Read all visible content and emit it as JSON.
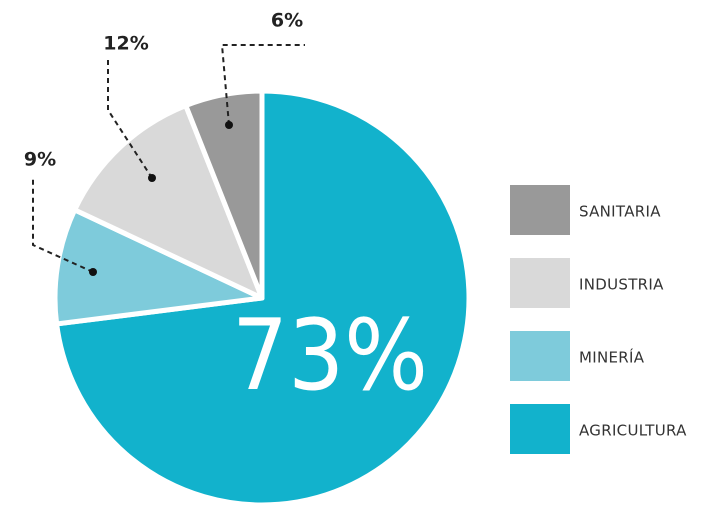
{
  "chart_data": {
    "type": "pie",
    "categories": [
      "AGRICULTURA",
      "MINERÍA",
      "INDUSTRIA",
      "SANITARIA"
    ],
    "values": [
      73,
      9,
      12,
      6
    ],
    "value_labels": [
      "73%",
      "9%",
      "12%",
      "6%"
    ],
    "colors": [
      "#12b2cc",
      "#7ecbdb",
      "#d9d9d9",
      "#999999"
    ]
  }
}
